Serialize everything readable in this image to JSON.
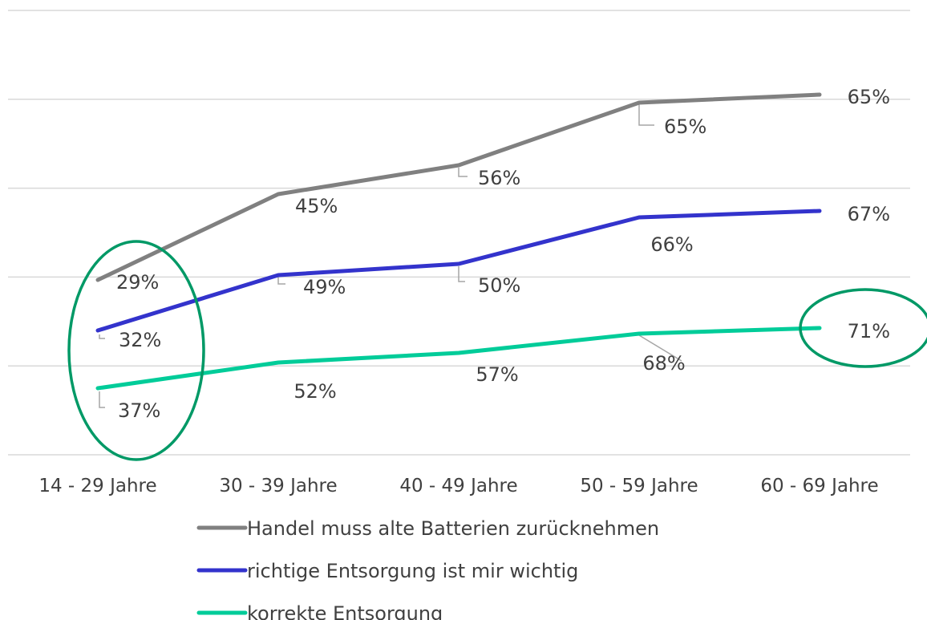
{
  "chart_data": {
    "type": "line",
    "categories": [
      "14 - 29 Jahre",
      "30 - 39 Jahre",
      "40 - 49 Jahre",
      "50 - 59 Jahre",
      "60 - 69 Jahre"
    ],
    "series": [
      {
        "name": "Handel muss alte Batterien zurücknehmen",
        "color": "#808080",
        "values": [
          29,
          45,
          56,
          65,
          65
        ],
        "labels": [
          "29%",
          "45%",
          "56%",
          "65%",
          "65%"
        ]
      },
      {
        "name": "richtige Entsorgung ist mir wichtig",
        "color": "#3333cc",
        "values": [
          32,
          49,
          50,
          66,
          67
        ],
        "labels": [
          "32%",
          "49%",
          "50%",
          "66%",
          "67%"
        ]
      },
      {
        "name": "korrekte Entsorgung",
        "color": "#00cc99",
        "values": [
          37,
          52,
          57,
          68,
          71
        ],
        "labels": [
          "37%",
          "52%",
          "57%",
          "68%",
          "71%"
        ]
      }
    ],
    "gridlines": 6,
    "legend_position": "bottom",
    "highlight_color": "#009966"
  }
}
